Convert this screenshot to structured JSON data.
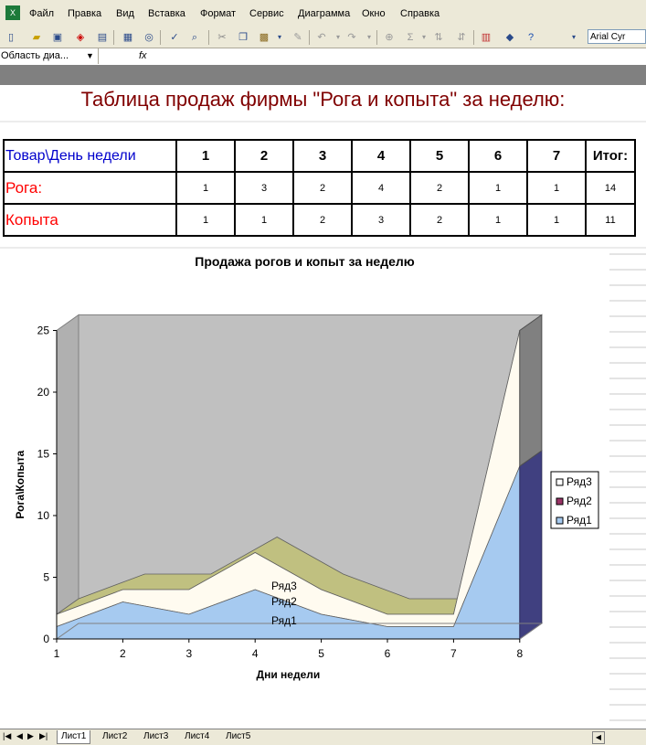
{
  "app": {
    "menu": [
      "Файл",
      "Правка",
      "Вид",
      "Вставка",
      "Формат",
      "Сервис",
      "Диаграмма",
      "Окно",
      "Справка"
    ],
    "font_name": "Arial Cyr",
    "name_box": "Область диа...",
    "fx": "fx"
  },
  "sheet": {
    "title": "Таблица продаж фирмы \"Рога и копыта\" за неделю:",
    "table": {
      "header": [
        "Товар\\День недели",
        "1",
        "2",
        "3",
        "4",
        "5",
        "6",
        "7",
        "Итог:"
      ],
      "rows": [
        {
          "label": "Рога:",
          "values": [
            "1",
            "3",
            "2",
            "4",
            "2",
            "1",
            "1",
            "14"
          ]
        },
        {
          "label": "Копыта",
          "values": [
            "1",
            "1",
            "2",
            "3",
            "2",
            "1",
            "1",
            "11"
          ]
        }
      ]
    },
    "tabs": [
      "Лист1",
      "Лист2",
      "Лист3",
      "Лист4",
      "Лист5"
    ]
  },
  "chart_data": {
    "type": "area",
    "title": "Продажа рогов и копыт за неделю",
    "xlabel": "Дни недели",
    "ylabel": "Рога\\Копыта",
    "categories": [
      "1",
      "2",
      "3",
      "4",
      "5",
      "6",
      "7",
      "8"
    ],
    "ylim": [
      0,
      25
    ],
    "yticks": [
      "0",
      "5",
      "10",
      "15",
      "20",
      "25"
    ],
    "series": [
      {
        "name": "Ряд1",
        "values": [
          1,
          3,
          2,
          4,
          2,
          1,
          1,
          14
        ],
        "color": "#a6caf0"
      },
      {
        "name": "Ряд2",
        "values": [
          1,
          1,
          2,
          3,
          2,
          1,
          1,
          11
        ],
        "color": "#fffbf0"
      },
      {
        "name": "Ряд3",
        "values": [
          0,
          0,
          0,
          0,
          0,
          0,
          0,
          0
        ],
        "color": "#c0c080"
      }
    ],
    "legend": [
      "Ряд3",
      "Ряд2",
      "Ряд1"
    ],
    "legend_colors": [
      "#ffffff",
      "#993366",
      "#a6caf0"
    ],
    "legend_position": "right",
    "plot_area_color": "#c0c0c0",
    "grid": false
  }
}
